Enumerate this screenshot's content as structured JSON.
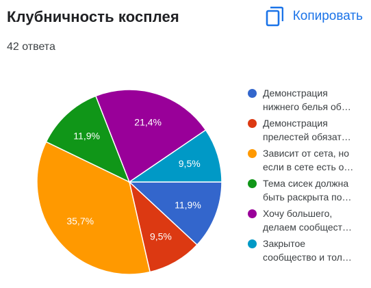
{
  "header": {
    "title": "Клубничность косплея",
    "subtitle": "42 ответа",
    "copy_label": "Копировать",
    "copy_icon": "copy-icon"
  },
  "chart_data": {
    "type": "pie",
    "slices": [
      {
        "legend_lines": [
          "Демонстрация",
          "нижнего белья об…"
        ],
        "value": 11.9,
        "label": "11,9%",
        "color": "#3366cc"
      },
      {
        "legend_lines": [
          "Демонстрация",
          "прелестей обязат…"
        ],
        "value": 9.5,
        "label": "9,5%",
        "color": "#dc3912"
      },
      {
        "legend_lines": [
          "Зависит от сета, но",
          "если в сете есть о…"
        ],
        "value": 35.7,
        "label": "35,7%",
        "color": "#ff9900"
      },
      {
        "legend_lines": [
          "Тема сисек должна",
          "быть раскрыта по…"
        ],
        "value": 11.9,
        "label": "11,9%",
        "color": "#109618"
      },
      {
        "legend_lines": [
          "Хочу большего,",
          "делаем сообщест…"
        ],
        "value": 21.4,
        "label": "21,4%",
        "color": "#990099"
      },
      {
        "legend_lines": [
          "Закрытое",
          "сообщество и тол…"
        ],
        "value": 9.5,
        "label": "9,5%",
        "color": "#0099c6"
      }
    ],
    "legend_position": "right",
    "direction": "clockwise",
    "start": "3 o'clock"
  }
}
